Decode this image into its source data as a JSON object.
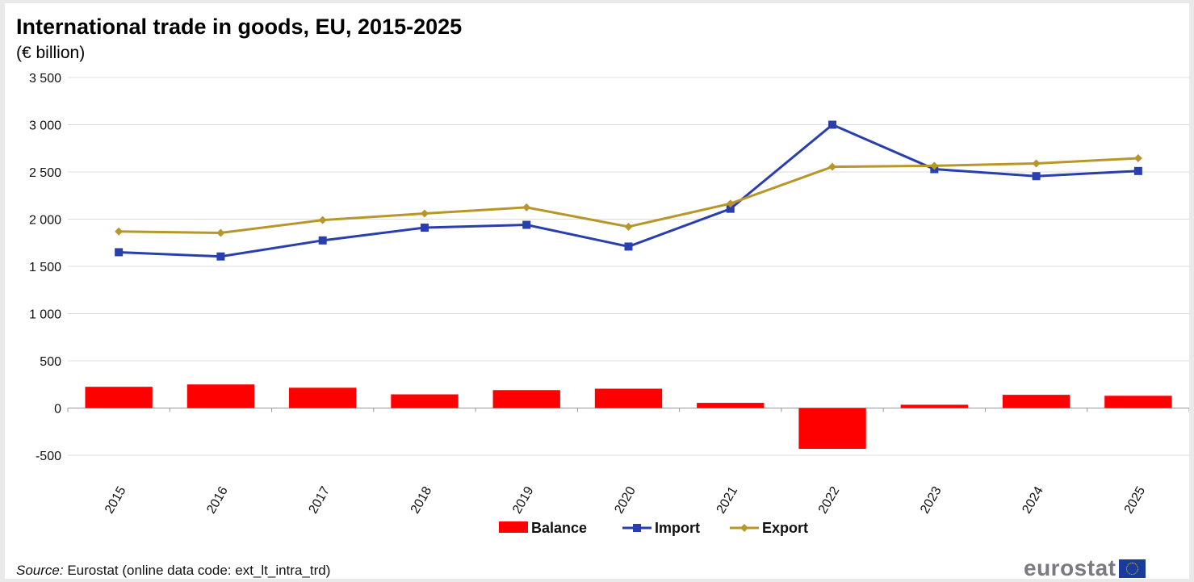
{
  "chart_data": {
    "type": "line",
    "title": "International trade in goods, EU, 2015-2025",
    "subtitle": "(€ billion)",
    "xlabel": "",
    "ylabel": "",
    "categories": [
      "2015",
      "2016",
      "2017",
      "2018",
      "2019",
      "2020",
      "2021",
      "2022",
      "2023",
      "2024",
      "2025"
    ],
    "ylim": [
      -500,
      3500
    ],
    "yticks": [
      -500,
      0,
      500,
      1000,
      1500,
      2000,
      2500,
      3000,
      3500
    ],
    "ytick_labels": [
      "-500",
      "0",
      "500",
      "1 000",
      "1 500",
      "2 000",
      "2 500",
      "3 000",
      "3 500"
    ],
    "grid": true,
    "legend_position": "bottom",
    "series": [
      {
        "name": "Balance",
        "type": "bar",
        "color": "#ff0000",
        "values": [
          225,
          250,
          215,
          145,
          190,
          205,
          55,
          -432,
          35,
          140,
          130
        ]
      },
      {
        "name": "Import",
        "type": "line",
        "color": "#2a3fae",
        "marker": "square",
        "values": [
          1650,
          1605,
          1775,
          1910,
          1940,
          1710,
          2110,
          3000,
          2530,
          2455,
          2510
        ]
      },
      {
        "name": "Export",
        "type": "line",
        "color": "#b8972a",
        "marker": "diamond",
        "values": [
          1870,
          1855,
          1990,
          2060,
          2125,
          1920,
          2165,
          2555,
          2565,
          2590,
          2645
        ]
      }
    ]
  },
  "source": {
    "label": "Source:",
    "text": "Eurostat (online data code: ext_lt_intra_trd)"
  },
  "logo": {
    "word": "eurostat",
    "flag_icon": "eu-flag-icon"
  }
}
